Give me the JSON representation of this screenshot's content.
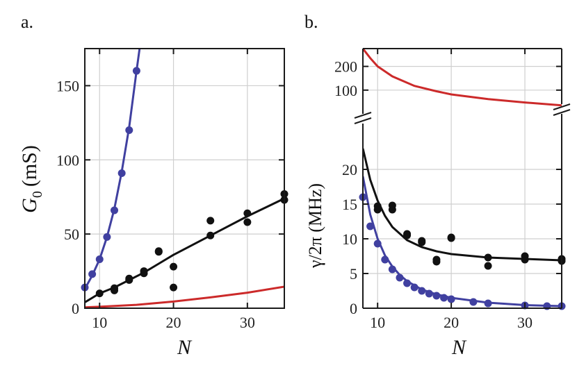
{
  "chart_data": [
    {
      "panel": "a.",
      "type": "scatter",
      "xlabel": "N",
      "ylabel": "G",
      "ylabel_sub": "0",
      "ylabel_unit": "(mS)",
      "xlim": [
        8,
        35
      ],
      "ylim": [
        0,
        175
      ],
      "xticks": [
        10,
        20,
        30
      ],
      "yticks": [
        0,
        50,
        100,
        150
      ],
      "grid": true,
      "colors": {
        "blue": "#4040a0",
        "black": "#111111",
        "red": "#cc2a2a"
      },
      "series": [
        {
          "color": "blue",
          "points": [
            [
              8,
              14
            ],
            [
              9,
              23
            ],
            [
              10,
              33
            ],
            [
              11,
              48
            ],
            [
              12,
              66
            ],
            [
              13,
              91
            ],
            [
              14,
              120
            ],
            [
              15,
              160
            ]
          ],
          "curve": [
            [
              8,
              13
            ],
            [
              9,
              22
            ],
            [
              10,
              33
            ],
            [
              11,
              48
            ],
            [
              12,
              67
            ],
            [
              13,
              92
            ],
            [
              14,
              122
            ],
            [
              15,
              160
            ],
            [
              15.5,
              178
            ]
          ]
        },
        {
          "color": "black",
          "points": [
            [
              10,
              10
            ],
            [
              12,
              12
            ],
            [
              12,
              13.5
            ],
            [
              14,
              19
            ],
            [
              14,
              20
            ],
            [
              16,
              23.5
            ],
            [
              16,
              25
            ],
            [
              18,
              38
            ],
            [
              18,
              38.5
            ],
            [
              20,
              14
            ],
            [
              20,
              28
            ],
            [
              25,
              49
            ],
            [
              25,
              59
            ],
            [
              30,
              58
            ],
            [
              30,
              64
            ],
            [
              35,
              73
            ],
            [
              35,
              77
            ]
          ],
          "curve": [
            [
              8,
              4
            ],
            [
              10,
              10
            ],
            [
              12,
              14
            ],
            [
              14,
              19
            ],
            [
              16,
              24
            ],
            [
              18,
              30
            ],
            [
              20,
              36
            ],
            [
              25,
              49
            ],
            [
              30,
              62
            ],
            [
              35,
              74
            ]
          ]
        },
        {
          "color": "red",
          "points": [],
          "curve": [
            [
              8,
              0.6
            ],
            [
              10,
              1
            ],
            [
              15,
              2.3
            ],
            [
              20,
              4.5
            ],
            [
              25,
              7.3
            ],
            [
              30,
              10.5
            ],
            [
              35,
              14.5
            ]
          ]
        }
      ]
    },
    {
      "panel": "b.",
      "type": "scatter",
      "xlabel": "N",
      "ylabel": "γ/2π (MHz)",
      "xlim": [
        8,
        35
      ],
      "ylim_lower": [
        0,
        25
      ],
      "ylim_upper": [
        0,
        275
      ],
      "xticks": [
        10,
        20,
        30
      ],
      "yticks_lower": [
        0,
        5,
        10,
        15,
        20
      ],
      "yticks_upper": [
        100,
        200
      ],
      "axis_break": true,
      "grid": true,
      "colors": {
        "blue": "#4040a0",
        "black": "#111111",
        "red": "#cc2a2a"
      },
      "series": [
        {
          "color": "blue",
          "points": [
            [
              8,
              16
            ],
            [
              9,
              11.8
            ],
            [
              10,
              9.3
            ],
            [
              11,
              7
            ],
            [
              12,
              5.6
            ],
            [
              13,
              4.4
            ],
            [
              14,
              3.6
            ],
            [
              15,
              3
            ],
            [
              16,
              2.5
            ],
            [
              17,
              2.1
            ],
            [
              18,
              1.8
            ],
            [
              19,
              1.5
            ],
            [
              20,
              1.3
            ],
            [
              23,
              0.9
            ],
            [
              25,
              0.7
            ],
            [
              30,
              0.4
            ],
            [
              33,
              0.3
            ],
            [
              35,
              0.3
            ]
          ],
          "curve": [
            [
              8,
              19
            ],
            [
              9,
              13.5
            ],
            [
              10,
              10
            ],
            [
              11,
              7.6
            ],
            [
              12,
              6
            ],
            [
              13,
              4.8
            ],
            [
              14,
              3.9
            ],
            [
              16,
              2.7
            ],
            [
              18,
              2
            ],
            [
              20,
              1.5
            ],
            [
              25,
              0.8
            ],
            [
              30,
              0.45
            ],
            [
              35,
              0.3
            ]
          ]
        },
        {
          "color": "black",
          "points": [
            [
              10,
              14.2
            ],
            [
              10,
              14.7
            ],
            [
              12,
              14.2
            ],
            [
              12,
              14.8
            ],
            [
              14,
              10.5
            ],
            [
              14,
              10.7
            ],
            [
              16,
              9.5
            ],
            [
              16,
              9.7
            ],
            [
              18,
              6.7
            ],
            [
              18,
              7
            ],
            [
              20,
              10.1
            ],
            [
              20,
              10.2
            ],
            [
              25,
              6.1
            ],
            [
              25,
              7.3
            ],
            [
              30,
              7
            ],
            [
              30,
              7.5
            ],
            [
              35,
              6.8
            ],
            [
              35,
              7.1
            ]
          ],
          "curve": [
            [
              8,
              23
            ],
            [
              9,
              18.5
            ],
            [
              10,
              15.5
            ],
            [
              11,
              13.3
            ],
            [
              12,
              11.7
            ],
            [
              14,
              9.8
            ],
            [
              16,
              8.8
            ],
            [
              18,
              8.2
            ],
            [
              20,
              7.8
            ],
            [
              25,
              7.3
            ],
            [
              30,
              7.1
            ],
            [
              35,
              6.9
            ]
          ]
        },
        {
          "color": "red",
          "axis": "upper",
          "points": [],
          "curve": [
            [
              8,
              275
            ],
            [
              9,
              235
            ],
            [
              10,
              200
            ],
            [
              12,
              158
            ],
            [
              15,
              118
            ],
            [
              18,
              95
            ],
            [
              20,
              82
            ],
            [
              25,
              62
            ],
            [
              30,
              48
            ],
            [
              35,
              36
            ]
          ]
        }
      ]
    }
  ]
}
